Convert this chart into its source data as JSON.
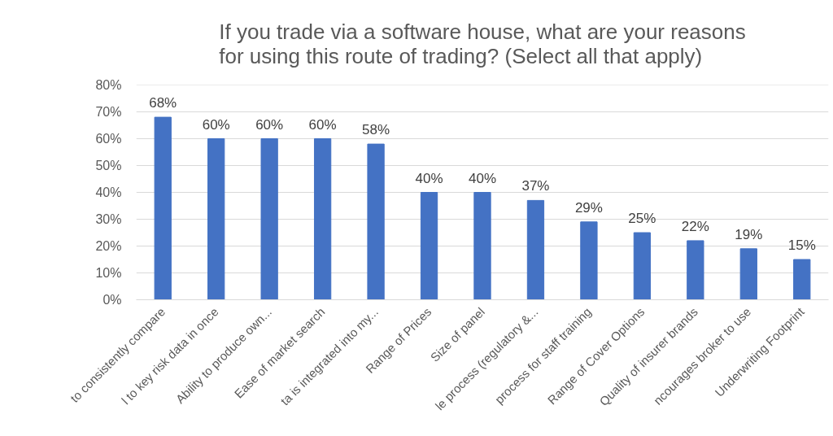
{
  "chart_data": {
    "type": "bar",
    "title": "If you trade via a software house, what are your reasons\nfor using this route of trading? (Select all that apply)",
    "categories": [
      "to consistently compare",
      "l to key risk data in once",
      "Ability to produce own...",
      "Ease of market search",
      "ta is integrated into my...",
      "Range of Prices",
      "Size of panel",
      "le process (regulatory &...",
      "process for staff training",
      "Range of Cover Options",
      "Quality of insurer brands",
      "ncourages broker to use",
      "Underwriting Footprint"
    ],
    "values": [
      68,
      60,
      60,
      60,
      58,
      40,
      40,
      37,
      29,
      25,
      22,
      19,
      15
    ],
    "value_labels": [
      "68%",
      "60%",
      "60%",
      "60%",
      "58%",
      "40%",
      "40%",
      "37%",
      "29%",
      "25%",
      "22%",
      "19%",
      "15%"
    ],
    "color": "#4472c4",
    "ylim": [
      0,
      80
    ],
    "yticks": [
      {
        "value": 0,
        "label": "0%"
      },
      {
        "value": 10,
        "label": "10%"
      },
      {
        "value": 20,
        "label": "20%"
      },
      {
        "value": 30,
        "label": "30%"
      },
      {
        "value": 40,
        "label": "40%"
      },
      {
        "value": 50,
        "label": "50%"
      },
      {
        "value": 60,
        "label": "60%"
      },
      {
        "value": 70,
        "label": "70%"
      },
      {
        "value": 80,
        "label": "80%"
      }
    ],
    "grid": "y"
  }
}
